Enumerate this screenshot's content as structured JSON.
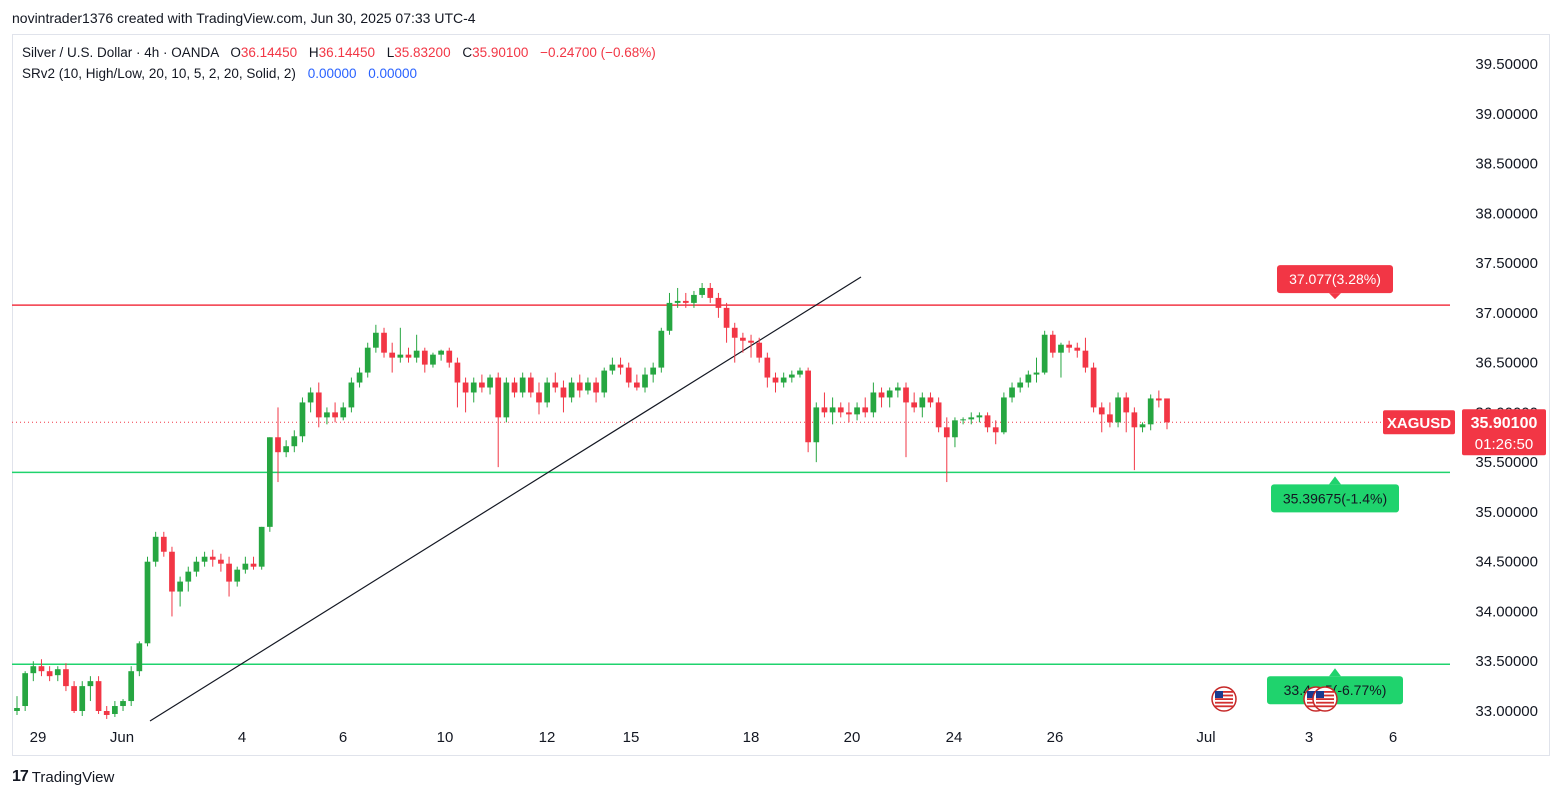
{
  "header": {
    "caption": "novintrader1376 created with TradingView.com, Jun 30, 2025 07:33 UTC-4"
  },
  "legend": {
    "symbol_line": "Silver / U.S. Dollar · 4h · OANDA",
    "o_label": "O",
    "o_value": "36.14450",
    "h_label": "H",
    "h_value": "36.14450",
    "l_label": "L",
    "l_value": "35.83200",
    "c_label": "C",
    "c_value": "35.90100",
    "change": "−0.24700 (−0.68%)",
    "indicator": "SRv2 (10, High/Low, 20, 10, 5, 2, 20, Solid, 2)",
    "ind_val1": "0.00000",
    "ind_val2": "0.00000"
  },
  "footer": {
    "logo_mark": "17",
    "logo_text": "TradingView",
    "logo_icon": "tradingview-logo-icon"
  },
  "colors": {
    "up": "#26a641",
    "down": "#f23645",
    "resistance": "#f23645",
    "support": "#1fd36d",
    "trendline": "#131722",
    "axis_text": "#131722"
  },
  "chart_data": {
    "type": "candlestick",
    "symbol": "XAGUSD",
    "ylim": [
      32.96,
      39.96
    ],
    "x_ticks": [
      "29",
      "Jun",
      "4",
      "6",
      "10",
      "12",
      "15",
      "18",
      "20",
      "24",
      "26",
      "Jul",
      "3",
      "6"
    ],
    "y_ticks": [
      "39.50000",
      "39.00000",
      "38.50000",
      "38.00000",
      "37.50000",
      "37.00000",
      "36.50000",
      "36.00000",
      "35.50000",
      "35.00000",
      "34.50000",
      "34.00000",
      "33.50000",
      "33.00000"
    ],
    "last_price": {
      "symbol": "XAGUSD",
      "price": "35.90100",
      "countdown": "01:26:50",
      "value": 35.901
    },
    "levels": [
      {
        "name": "resistance",
        "value": 37.077,
        "label": "37.077(3.28%)"
      },
      {
        "name": "support-1",
        "value": 35.39675,
        "label": "35.39675(-1.4%)"
      },
      {
        "name": "support-2",
        "value": 33.47,
        "label": "33.4…5(-6.77%)"
      }
    ],
    "trendline": {
      "from": [
        "Jun 1",
        32.92
      ],
      "to": [
        "Jun 18",
        37.36
      ]
    },
    "events": [
      {
        "name": "us-flag-icon",
        "date": "Jun 30"
      },
      {
        "name": "us-flag-icon",
        "date": "Jul 3"
      },
      {
        "name": "us-flag-icon",
        "date": "Jul 3"
      }
    ],
    "candles": [
      [
        33.0,
        33.15,
        32.96,
        33.03
      ],
      [
        33.05,
        33.4,
        33.0,
        33.38
      ],
      [
        33.38,
        33.5,
        33.3,
        33.45
      ],
      [
        33.45,
        33.52,
        33.35,
        33.4
      ],
      [
        33.4,
        33.45,
        33.3,
        33.35
      ],
      [
        33.36,
        33.45,
        33.3,
        33.42
      ],
      [
        33.42,
        33.48,
        33.2,
        33.25
      ],
      [
        33.25,
        33.3,
        32.98,
        33.0
      ],
      [
        33.0,
        33.3,
        32.95,
        33.25
      ],
      [
        33.25,
        33.35,
        33.1,
        33.3
      ],
      [
        33.3,
        33.35,
        32.97,
        33.0
      ],
      [
        33.0,
        33.05,
        32.92,
        32.96
      ],
      [
        32.97,
        33.1,
        32.94,
        33.05
      ],
      [
        33.05,
        33.12,
        33.0,
        33.1
      ],
      [
        33.1,
        33.45,
        33.05,
        33.4
      ],
      [
        33.4,
        33.7,
        33.35,
        33.68
      ],
      [
        33.68,
        34.55,
        33.65,
        34.5
      ],
      [
        34.5,
        34.8,
        34.45,
        34.75
      ],
      [
        34.75,
        34.8,
        34.55,
        34.6
      ],
      [
        34.6,
        34.65,
        33.95,
        34.2
      ],
      [
        34.2,
        34.35,
        34.05,
        34.3
      ],
      [
        34.3,
        34.45,
        34.2,
        34.4
      ],
      [
        34.4,
        34.55,
        34.35,
        34.5
      ],
      [
        34.5,
        34.6,
        34.45,
        34.55
      ],
      [
        34.55,
        34.62,
        34.45,
        34.52
      ],
      [
        34.52,
        34.58,
        34.4,
        34.48
      ],
      [
        34.48,
        34.55,
        34.15,
        34.3
      ],
      [
        34.3,
        34.45,
        34.25,
        34.42
      ],
      [
        34.42,
        34.55,
        34.38,
        34.48
      ],
      [
        34.48,
        34.55,
        34.42,
        34.45
      ],
      [
        34.45,
        34.85,
        34.42,
        34.85
      ],
      [
        34.85,
        35.75,
        34.8,
        35.75
      ],
      [
        35.75,
        36.05,
        35.3,
        35.6
      ],
      [
        35.6,
        35.72,
        35.55,
        35.66
      ],
      [
        35.66,
        35.82,
        35.6,
        35.76
      ],
      [
        35.76,
        36.15,
        35.7,
        36.1
      ],
      [
        36.1,
        36.25,
        36.0,
        36.2
      ],
      [
        36.2,
        36.3,
        35.85,
        35.95
      ],
      [
        35.95,
        36.05,
        35.88,
        36.0
      ],
      [
        36.0,
        36.1,
        35.9,
        35.95
      ],
      [
        35.95,
        36.1,
        35.92,
        36.05
      ],
      [
        36.05,
        36.35,
        36.0,
        36.3
      ],
      [
        36.3,
        36.45,
        36.25,
        36.4
      ],
      [
        36.4,
        36.7,
        36.35,
        36.65
      ],
      [
        36.65,
        36.88,
        36.6,
        36.8
      ],
      [
        36.8,
        36.85,
        36.55,
        36.6
      ],
      [
        36.6,
        36.7,
        36.4,
        36.55
      ],
      [
        36.55,
        36.85,
        36.5,
        36.58
      ],
      [
        36.58,
        36.65,
        36.5,
        36.55
      ],
      [
        36.55,
        36.78,
        36.5,
        36.62
      ],
      [
        36.62,
        36.65,
        36.4,
        36.48
      ],
      [
        36.48,
        36.6,
        36.45,
        36.58
      ],
      [
        36.58,
        36.63,
        36.52,
        36.62
      ],
      [
        36.62,
        36.65,
        36.45,
        36.5
      ],
      [
        36.5,
        36.55,
        36.05,
        36.3
      ],
      [
        36.3,
        36.35,
        36.0,
        36.2
      ],
      [
        36.2,
        36.35,
        36.1,
        36.3
      ],
      [
        36.3,
        36.38,
        36.2,
        36.25
      ],
      [
        36.25,
        36.38,
        36.18,
        36.35
      ],
      [
        36.35,
        36.4,
        35.45,
        35.95
      ],
      [
        35.95,
        36.35,
        35.9,
        36.3
      ],
      [
        36.3,
        36.35,
        36.15,
        36.2
      ],
      [
        36.2,
        36.4,
        36.15,
        36.35
      ],
      [
        36.35,
        36.4,
        36.15,
        36.2
      ],
      [
        36.2,
        36.3,
        35.98,
        36.1
      ],
      [
        36.1,
        36.35,
        36.05,
        36.3
      ],
      [
        36.3,
        36.4,
        36.2,
        36.25
      ],
      [
        36.25,
        36.32,
        36.0,
        36.15
      ],
      [
        36.15,
        36.35,
        36.1,
        36.3
      ],
      [
        36.3,
        36.38,
        36.15,
        36.22
      ],
      [
        36.22,
        36.35,
        36.18,
        36.3
      ],
      [
        36.3,
        36.35,
        36.1,
        36.2
      ],
      [
        36.2,
        36.45,
        36.15,
        36.42
      ],
      [
        36.42,
        36.55,
        36.38,
        36.48
      ],
      [
        36.48,
        36.55,
        36.38,
        36.45
      ],
      [
        36.45,
        36.5,
        36.25,
        36.3
      ],
      [
        36.3,
        36.38,
        36.22,
        36.25
      ],
      [
        36.25,
        36.45,
        36.2,
        36.38
      ],
      [
        36.38,
        36.5,
        36.3,
        36.45
      ],
      [
        36.45,
        36.85,
        36.4,
        36.82
      ],
      [
        36.82,
        37.2,
        36.78,
        37.1
      ],
      [
        37.1,
        37.25,
        37.05,
        37.12
      ],
      [
        37.12,
        37.2,
        37.05,
        37.1
      ],
      [
        37.1,
        37.22,
        37.05,
        37.18
      ],
      [
        37.18,
        37.3,
        37.15,
        37.25
      ],
      [
        37.25,
        37.3,
        37.1,
        37.15
      ],
      [
        37.15,
        37.2,
        36.95,
        37.05
      ],
      [
        37.05,
        37.1,
        36.7,
        36.85
      ],
      [
        36.85,
        36.9,
        36.5,
        36.75
      ],
      [
        36.75,
        36.8,
        36.6,
        36.72
      ],
      [
        36.72,
        36.78,
        36.55,
        36.7
      ],
      [
        36.7,
        36.75,
        36.5,
        36.55
      ],
      [
        36.55,
        36.6,
        36.25,
        36.35
      ],
      [
        36.35,
        36.4,
        36.2,
        36.3
      ],
      [
        36.3,
        36.4,
        36.25,
        36.35
      ],
      [
        36.35,
        36.42,
        36.3,
        36.38
      ],
      [
        36.38,
        36.45,
        36.35,
        36.42
      ],
      [
        36.42,
        36.45,
        35.6,
        35.7
      ],
      [
        35.7,
        36.1,
        35.5,
        36.05
      ],
      [
        36.05,
        36.2,
        35.95,
        36.0
      ],
      [
        36.0,
        36.15,
        35.88,
        36.05
      ],
      [
        36.05,
        36.1,
        35.95,
        36.0
      ],
      [
        36.0,
        36.1,
        35.9,
        35.98
      ],
      [
        35.98,
        36.1,
        35.92,
        36.05
      ],
      [
        36.05,
        36.15,
        35.95,
        36.0
      ],
      [
        36.0,
        36.3,
        35.95,
        36.2
      ],
      [
        36.2,
        36.25,
        36.05,
        36.15
      ],
      [
        36.15,
        36.25,
        36.05,
        36.22
      ],
      [
        36.22,
        36.3,
        36.15,
        36.25
      ],
      [
        36.25,
        36.3,
        35.55,
        36.1
      ],
      [
        36.1,
        36.2,
        36.0,
        36.05
      ],
      [
        36.05,
        36.2,
        35.95,
        36.15
      ],
      [
        36.15,
        36.2,
        36.05,
        36.1
      ],
      [
        36.1,
        36.15,
        35.8,
        35.85
      ],
      [
        35.85,
        35.95,
        35.3,
        35.75
      ],
      [
        35.75,
        35.95,
        35.65,
        35.92
      ],
      [
        35.92,
        35.95,
        35.88,
        35.93
      ],
      [
        35.93,
        36.0,
        35.88,
        35.95
      ],
      [
        35.95,
        36.0,
        35.9,
        35.97
      ],
      [
        35.97,
        36.0,
        35.8,
        35.85
      ],
      [
        35.85,
        35.92,
        35.68,
        35.8
      ],
      [
        35.8,
        36.2,
        35.78,
        36.15
      ],
      [
        36.15,
        36.3,
        36.1,
        36.25
      ],
      [
        36.25,
        36.35,
        36.2,
        36.3
      ],
      [
        36.3,
        36.42,
        36.25,
        36.38
      ],
      [
        36.38,
        36.55,
        36.3,
        36.4
      ],
      [
        36.4,
        36.82,
        36.38,
        36.78
      ],
      [
        36.78,
        36.82,
        36.55,
        36.6
      ],
      [
        36.6,
        36.7,
        36.35,
        36.68
      ],
      [
        36.68,
        36.72,
        36.6,
        36.65
      ],
      [
        36.65,
        36.7,
        36.55,
        36.62
      ],
      [
        36.62,
        36.75,
        36.4,
        36.45
      ],
      [
        36.45,
        36.5,
        36.0,
        36.05
      ],
      [
        36.05,
        36.1,
        35.8,
        35.98
      ],
      [
        35.98,
        36.1,
        35.85,
        35.9
      ],
      [
        35.9,
        36.2,
        35.85,
        36.15
      ],
      [
        36.15,
        36.2,
        35.8,
        36.0
      ],
      [
        36.0,
        36.05,
        35.42,
        35.85
      ],
      [
        35.85,
        35.9,
        35.8,
        35.88
      ],
      [
        35.88,
        36.18,
        35.82,
        36.14
      ],
      [
        36.14,
        36.22,
        36.05,
        36.12
      ],
      [
        36.14,
        36.14,
        35.83,
        35.9
      ]
    ]
  }
}
